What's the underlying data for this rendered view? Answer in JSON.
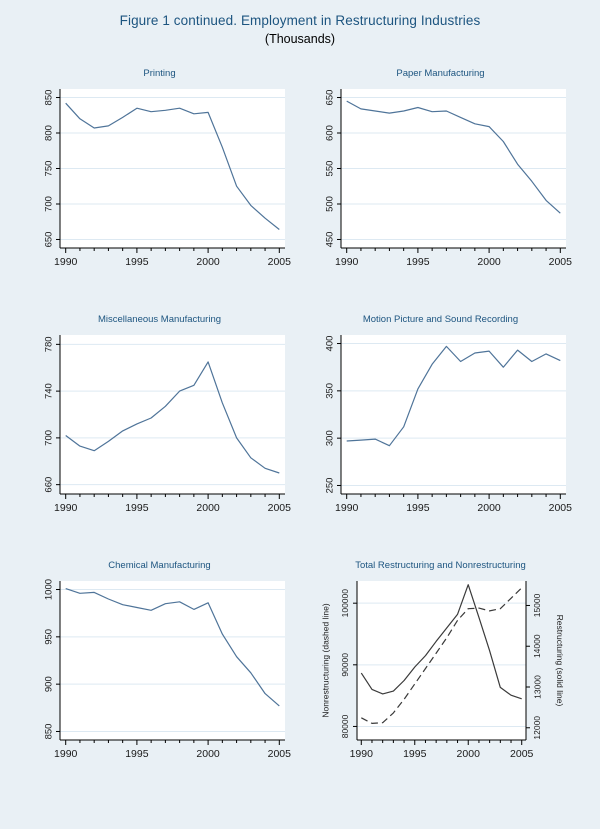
{
  "figure": {
    "title": "Figure 1 continued.  Employment in Restructuring Industries",
    "subtitle": "(Thousands)"
  },
  "colors": {
    "background": "#e9f0f5",
    "plot_background": "#ffffff",
    "title_navy": "#1d5580",
    "series_blue": "#4f7499",
    "dual_series_dark": "#3a3a3a",
    "gridline": "#dde9f2",
    "axis": "#000000"
  },
  "chart_data": [
    {
      "type": "line",
      "title": "Printing",
      "x": [
        1990,
        1991,
        1992,
        1993,
        1994,
        1995,
        1996,
        1997,
        1998,
        1999,
        2000,
        2001,
        2002,
        2003,
        2004,
        2005
      ],
      "xticks": [
        1990,
        1995,
        2000,
        2005
      ],
      "left_axis": {
        "ticks": [
          650,
          700,
          750,
          800,
          850
        ],
        "lim": [
          638,
          862
        ],
        "label": ""
      },
      "series": [
        {
          "name": "Printing employment",
          "axis": "left",
          "style": "solid",
          "color_key": "series_blue",
          "values": [
            842,
            820,
            807,
            810,
            822,
            835,
            830,
            832,
            835,
            827,
            829,
            780,
            725,
            698,
            680,
            664
          ]
        }
      ]
    },
    {
      "type": "line",
      "title": "Paper Manufacturing",
      "x": [
        1990,
        1991,
        1992,
        1993,
        1994,
        1995,
        1996,
        1997,
        1998,
        1999,
        2000,
        2001,
        2002,
        2003,
        2004,
        2005
      ],
      "xticks": [
        1990,
        1995,
        2000,
        2005
      ],
      "left_axis": {
        "ticks": [
          450,
          500,
          550,
          600,
          650
        ],
        "lim": [
          438,
          662
        ],
        "label": ""
      },
      "series": [
        {
          "name": "Paper manufacturing employment",
          "axis": "left",
          "style": "solid",
          "color_key": "series_blue",
          "values": [
            645,
            634,
            631,
            628,
            631,
            636,
            630,
            631,
            622,
            613,
            609,
            588,
            556,
            532,
            505,
            487
          ]
        }
      ]
    },
    {
      "type": "line",
      "title": "Miscellaneous Manufacturing",
      "x": [
        1990,
        1991,
        1992,
        1993,
        1994,
        1995,
        1996,
        1997,
        1998,
        1999,
        2000,
        2001,
        2002,
        2003,
        2004,
        2005
      ],
      "xticks": [
        1990,
        1995,
        2000,
        2005
      ],
      "left_axis": {
        "ticks": [
          660,
          700,
          740,
          780
        ],
        "lim": [
          652,
          788
        ],
        "label": ""
      },
      "series": [
        {
          "name": "Miscellaneous manufacturing employment",
          "axis": "left",
          "style": "solid",
          "color_key": "series_blue",
          "values": [
            702,
            693,
            689,
            697,
            706,
            712,
            717,
            727,
            740,
            745,
            765,
            730,
            700,
            683,
            674,
            670
          ]
        }
      ]
    },
    {
      "type": "line",
      "title": "Motion Picture and Sound Recording",
      "x": [
        1990,
        1991,
        1992,
        1993,
        1994,
        1995,
        1996,
        1997,
        1998,
        1999,
        2000,
        2001,
        2002,
        2003,
        2004,
        2005
      ],
      "xticks": [
        1990,
        1995,
        2000,
        2005
      ],
      "left_axis": {
        "ticks": [
          250,
          300,
          350,
          400
        ],
        "lim": [
          241,
          409
        ],
        "label": ""
      },
      "series": [
        {
          "name": "Motion picture and sound recording employment",
          "axis": "left",
          "style": "solid",
          "color_key": "series_blue",
          "values": [
            297,
            298,
            299,
            292,
            312,
            352,
            378,
            397,
            381,
            390,
            392,
            375,
            393,
            381,
            389,
            382
          ]
        }
      ]
    },
    {
      "type": "line",
      "title": "Chemical Manufacturing",
      "x": [
        1990,
        1991,
        1992,
        1993,
        1994,
        1995,
        1996,
        1997,
        1998,
        1999,
        2000,
        2001,
        2002,
        2003,
        2004,
        2005
      ],
      "xticks": [
        1990,
        1995,
        2000,
        2005
      ],
      "left_axis": {
        "ticks": [
          850,
          900,
          950,
          1000
        ],
        "lim": [
          841,
          1009
        ],
        "label": ""
      },
      "series": [
        {
          "name": "Chemical manufacturing employment",
          "axis": "left",
          "style": "solid",
          "color_key": "series_blue",
          "values": [
            1001,
            996,
            997,
            990,
            984,
            981,
            978,
            985,
            987,
            979,
            986,
            953,
            929,
            912,
            890,
            877
          ]
        }
      ]
    },
    {
      "type": "line",
      "title": "Total Restructuring and Nonrestructuring",
      "dual": true,
      "x": [
        1990,
        1991,
        1992,
        1993,
        1994,
        1995,
        1996,
        1997,
        1998,
        1999,
        2000,
        2001,
        2002,
        2003,
        2004,
        2005
      ],
      "xticks": [
        1990,
        1995,
        2000,
        2005
      ],
      "left_axis": {
        "ticks": [
          80000,
          90000,
          100000
        ],
        "lim": [
          77800,
          103600
        ],
        "label": "Nonrestructuring (dashed line)"
      },
      "right_axis": {
        "ticks": [
          12000,
          13000,
          14000,
          15000
        ],
        "lim": [
          11700,
          15600
        ],
        "label": "Restructuring (solid line)"
      },
      "series": [
        {
          "name": "Restructuring total",
          "axis": "right",
          "style": "solid",
          "color_key": "dual_series_dark",
          "values": [
            13340,
            12940,
            12830,
            12900,
            13160,
            13490,
            13770,
            14120,
            14450,
            14780,
            15510,
            14710,
            13890,
            12990,
            12800,
            12710
          ]
        },
        {
          "name": "Nonrestructuring total",
          "axis": "left",
          "style": "dashed",
          "color_key": "dual_series_dark",
          "values": [
            81400,
            80500,
            80600,
            82200,
            84400,
            86900,
            89400,
            91900,
            94400,
            97200,
            99100,
            99200,
            98750,
            99100,
            100800,
            102500
          ]
        }
      ]
    }
  ]
}
